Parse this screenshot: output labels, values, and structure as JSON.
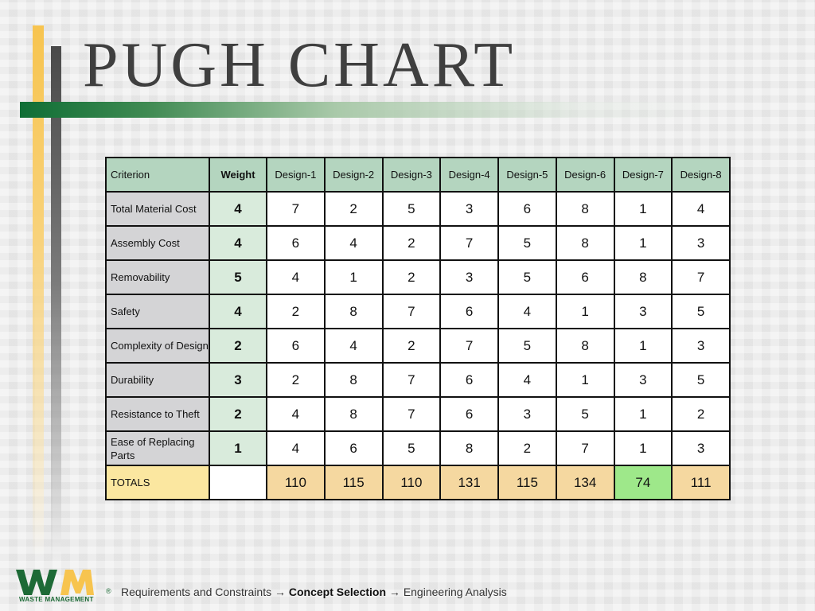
{
  "title": "PUGH CHART",
  "brand": {
    "logo_text": "WASTE MANAGEMENT",
    "registered": "®",
    "colors": {
      "green": "#1d6a36",
      "yellow": "#f7c44f"
    }
  },
  "table": {
    "criterion_header": "Criterion",
    "weight_header": "Weight",
    "designs": [
      "Design-1",
      "Design-2",
      "Design-3",
      "Design-4",
      "Design-5",
      "Design-6",
      "Design-7",
      "Design-8"
    ],
    "rows": [
      {
        "criterion": "Total Material Cost",
        "weight": "4",
        "scores": [
          "7",
          "2",
          "5",
          "3",
          "6",
          "8",
          "1",
          "4"
        ]
      },
      {
        "criterion": "Assembly Cost",
        "weight": "4",
        "scores": [
          "6",
          "4",
          "2",
          "7",
          "5",
          "8",
          "1",
          "3"
        ]
      },
      {
        "criterion": "Removability",
        "weight": "5",
        "scores": [
          "4",
          "1",
          "2",
          "3",
          "5",
          "6",
          "8",
          "7"
        ]
      },
      {
        "criterion": "Safety",
        "weight": "4",
        "scores": [
          "2",
          "8",
          "7",
          "6",
          "4",
          "1",
          "3",
          "5"
        ]
      },
      {
        "criterion": "Complexity of Design",
        "weight": "2",
        "scores": [
          "6",
          "4",
          "2",
          "7",
          "5",
          "8",
          "1",
          "3"
        ]
      },
      {
        "criterion": "Durability",
        "weight": "3",
        "scores": [
          "2",
          "8",
          "7",
          "6",
          "4",
          "1",
          "3",
          "5"
        ]
      },
      {
        "criterion": "Resistance to Theft",
        "weight": "2",
        "scores": [
          "4",
          "8",
          "7",
          "6",
          "3",
          "5",
          "1",
          "2"
        ]
      },
      {
        "criterion": "Ease of Replacing Parts",
        "weight": "1",
        "scores": [
          "4",
          "6",
          "5",
          "8",
          "2",
          "7",
          "1",
          "3"
        ]
      }
    ],
    "totals_label": "TOTALS",
    "totals": [
      "110",
      "115",
      "110",
      "131",
      "115",
      "134",
      "74",
      "111"
    ],
    "best_index": 6
  },
  "footer": {
    "step1": "Requirements and Constraints",
    "arrow": "→",
    "step2": "Concept Selection",
    "step3": "Engineering Analysis"
  }
}
